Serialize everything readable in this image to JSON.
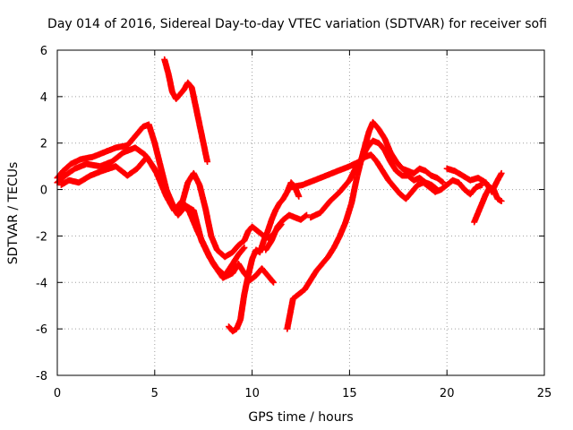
{
  "chart_data": {
    "type": "scatter",
    "title": "Day 014 of 2016, Sidereal Day-to-day VTEC variation (SDTVAR) for receiver sofi",
    "xlabel": "GPS time / hours",
    "ylabel": "SDTVAR / TECUs",
    "xlim": [
      0,
      25
    ],
    "ylim": [
      -8,
      6
    ],
    "x_ticks": [
      0,
      5,
      10,
      15,
      20,
      25
    ],
    "y_ticks": [
      -8,
      -6,
      -4,
      -2,
      0,
      2,
      4,
      6
    ],
    "x_tick_labels": [
      "0",
      "5",
      "10",
      "15",
      "20",
      "25"
    ],
    "y_tick_labels": [
      "-8",
      "-6",
      "-4",
      "-2",
      "0",
      "2",
      "4",
      "6"
    ],
    "grid": true,
    "legend": "none",
    "marker": "plus",
    "marker_color": "#ff0000",
    "series": [
      {
        "x": [
          0.0,
          0.3,
          0.7,
          1.2,
          1.8,
          2.4,
          3.0,
          3.6,
          4.0,
          4.4,
          4.7,
          5.0,
          5.3,
          5.6,
          5.9,
          6.1,
          6.4,
          6.7,
          7.0,
          7.3,
          7.6,
          7.9,
          8.2,
          8.6,
          9.0,
          9.3,
          9.6,
          9.8,
          10.0,
          10.3,
          10.6,
          10.9,
          11.2,
          11.5
        ],
        "y": [
          0.5,
          0.8,
          1.1,
          1.3,
          1.4,
          1.6,
          1.8,
          1.9,
          2.3,
          2.7,
          2.8,
          2.0,
          1.0,
          0.0,
          -0.6,
          -0.9,
          -0.6,
          0.3,
          0.7,
          0.2,
          -0.8,
          -2.0,
          -2.6,
          -2.9,
          -2.7,
          -2.4,
          -2.2,
          -1.8,
          -1.6,
          -1.8,
          -2.0,
          -2.1,
          -1.8,
          -1.5
        ]
      },
      {
        "x": [
          0.0,
          0.4,
          0.9,
          1.5,
          2.2,
          2.8,
          3.4,
          4.0,
          4.5,
          5.0,
          5.5,
          5.9,
          6.2,
          6.6,
          7.0,
          7.4,
          7.8,
          8.2,
          8.6,
          9.0,
          9.3,
          9.6
        ],
        "y": [
          0.3,
          0.6,
          0.9,
          1.1,
          1.0,
          1.2,
          1.6,
          1.8,
          1.5,
          0.9,
          0.0,
          -0.7,
          -1.1,
          -0.7,
          -0.9,
          -2.2,
          -2.9,
          -3.4,
          -3.7,
          -3.2,
          -2.8,
          -2.5
        ]
      },
      {
        "x": [
          0.2,
          0.6,
          1.1,
          1.7,
          2.3,
          3.0,
          3.6,
          4.1,
          4.6,
          5.1,
          5.6,
          6.0,
          6.4,
          6.8,
          7.2,
          7.6,
          8.0,
          8.5,
          9.0,
          9.3,
          9.6,
          9.9,
          10.2,
          10.5,
          10.8,
          11.1
        ],
        "y": [
          0.2,
          0.4,
          0.3,
          0.6,
          0.8,
          1.0,
          0.6,
          0.9,
          1.4,
          0.7,
          -0.3,
          -0.9,
          -0.5,
          -1.0,
          -1.8,
          -2.5,
          -3.2,
          -3.8,
          -3.6,
          -3.2,
          -3.6,
          -3.9,
          -3.7,
          -3.4,
          -3.7,
          -4.0
        ]
      },
      {
        "x": [
          5.5,
          5.7,
          5.9,
          6.1,
          6.3,
          6.5,
          6.7,
          6.9,
          7.1,
          7.3,
          7.5,
          7.7
        ],
        "y": [
          5.6,
          5.0,
          4.2,
          3.9,
          4.1,
          4.3,
          4.6,
          4.4,
          3.6,
          2.8,
          2.0,
          1.2
        ]
      },
      {
        "x": [
          8.8,
          9.0,
          9.2,
          9.4,
          9.6,
          9.8,
          10.0,
          10.2,
          10.4,
          10.6,
          10.8,
          11.0,
          11.2,
          11.4,
          11.6,
          11.8,
          12.0,
          12.2,
          12.4
        ],
        "y": [
          -5.9,
          -6.1,
          -6.0,
          -5.6,
          -4.5,
          -3.7,
          -3.0,
          -2.6,
          -2.7,
          -2.2,
          -1.8,
          -1.3,
          -0.9,
          -0.6,
          -0.4,
          -0.1,
          0.3,
          0.1,
          -0.3
        ]
      },
      {
        "x": [
          10.7,
          11.0,
          11.3,
          11.6,
          11.9,
          12.2,
          12.5,
          12.8
        ],
        "y": [
          -2.6,
          -2.2,
          -1.6,
          -1.3,
          -1.1,
          -1.2,
          -1.3,
          -1.1
        ]
      },
      {
        "x": [
          11.8,
          12.1,
          12.4,
          12.7,
          13.0,
          13.3,
          13.6,
          13.9,
          14.2,
          14.5,
          14.8,
          15.1,
          15.4,
          15.7,
          16.0,
          16.2,
          16.5,
          16.8,
          17.1,
          17.4,
          17.7,
          18.0,
          18.3,
          18.6,
          18.9,
          19.2,
          19.5,
          19.8
        ],
        "y": [
          -6.0,
          -4.7,
          -4.5,
          -4.3,
          -3.9,
          -3.5,
          -3.2,
          -2.9,
          -2.5,
          -2.0,
          -1.4,
          -0.6,
          0.6,
          1.6,
          2.5,
          2.9,
          2.6,
          2.2,
          1.6,
          1.2,
          0.9,
          0.8,
          0.7,
          0.9,
          0.8,
          0.6,
          0.5,
          0.3
        ]
      },
      {
        "x": [
          13.0,
          13.5,
          14.0,
          14.5,
          15.0,
          15.3,
          15.6,
          15.9,
          16.2,
          16.5,
          16.8,
          17.1,
          17.4,
          17.7,
          18.0,
          18.3,
          18.6,
          18.9,
          19.2,
          19.5
        ],
        "y": [
          -1.2,
          -1.0,
          -0.5,
          -0.1,
          0.4,
          0.9,
          1.3,
          1.8,
          2.1,
          2.0,
          1.7,
          1.2,
          0.8,
          0.6,
          0.6,
          0.4,
          0.5,
          0.3,
          0.2,
          0.0
        ]
      },
      {
        "x": [
          12.0,
          12.6,
          13.2,
          13.8,
          14.4,
          15.0,
          15.5,
          15.8,
          16.1,
          16.4,
          16.7,
          17.0,
          17.3,
          17.6,
          17.9,
          18.2,
          18.5,
          18.8,
          19.1,
          19.4,
          19.7,
          20.0,
          20.3,
          20.6,
          20.9,
          21.2,
          21.5,
          21.8
        ],
        "y": [
          0.1,
          0.2,
          0.4,
          0.6,
          0.8,
          1.0,
          1.2,
          1.4,
          1.5,
          1.2,
          0.8,
          0.4,
          0.1,
          -0.2,
          -0.4,
          -0.1,
          0.2,
          0.3,
          0.1,
          -0.1,
          0.0,
          0.2,
          0.4,
          0.3,
          0.0,
          -0.2,
          0.1,
          0.2
        ]
      },
      {
        "x": [
          20.0,
          20.4,
          20.8,
          21.2,
          21.6,
          22.0,
          22.3,
          22.6,
          22.8
        ],
        "y": [
          0.9,
          0.8,
          0.6,
          0.4,
          0.5,
          0.3,
          -0.1,
          0.4,
          0.7
        ]
      },
      {
        "x": [
          21.4,
          21.6,
          21.8,
          22.0,
          22.2,
          22.4,
          22.6,
          22.8
        ],
        "y": [
          -1.4,
          -1.0,
          -0.6,
          -0.2,
          0.1,
          0.0,
          -0.4,
          -0.5
        ]
      }
    ]
  }
}
